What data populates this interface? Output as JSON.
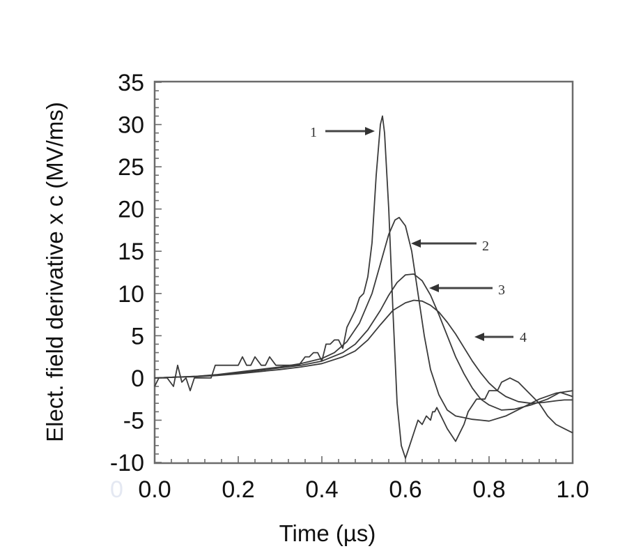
{
  "chart_data": {
    "type": "line",
    "title": "",
    "xlabel": "Time (µs)",
    "ylabel": "Elect. field derivative x c  (MV/ms)",
    "xlim": [
      0.0,
      1.0
    ],
    "ylim": [
      -10,
      35
    ],
    "x_ticks": [
      "0.0",
      "0.2",
      "0.4",
      "0.6",
      "0.8",
      "1.0"
    ],
    "x_tick_values": [
      0.0,
      0.2,
      0.4,
      0.6,
      0.8,
      1.0
    ],
    "y_ticks": [
      "35",
      "30",
      "25",
      "20",
      "15",
      "10",
      "5",
      "0",
      "-5",
      "-10"
    ],
    "y_tick_values": [
      35,
      30,
      25,
      20,
      15,
      10,
      5,
      0,
      -5,
      -10
    ],
    "grid": false,
    "legend": "none",
    "stray_glyph": "0",
    "series": [
      {
        "name": "1",
        "x": [
          0.0,
          0.01,
          0.02,
          0.03,
          0.045,
          0.055,
          0.065,
          0.075,
          0.085,
          0.095,
          0.11,
          0.12,
          0.135,
          0.145,
          0.155,
          0.17,
          0.185,
          0.2,
          0.21,
          0.22,
          0.23,
          0.24,
          0.255,
          0.265,
          0.275,
          0.29,
          0.3,
          0.315,
          0.33,
          0.345,
          0.36,
          0.37,
          0.38,
          0.39,
          0.4,
          0.41,
          0.42,
          0.43,
          0.44,
          0.45,
          0.46,
          0.47,
          0.48,
          0.49,
          0.5,
          0.51,
          0.52,
          0.53,
          0.54,
          0.545,
          0.55,
          0.56,
          0.57,
          0.58,
          0.59,
          0.6,
          0.61,
          0.62,
          0.63,
          0.64,
          0.65,
          0.66,
          0.665,
          0.67,
          0.675,
          0.68,
          0.69,
          0.7,
          0.72,
          0.74,
          0.75,
          0.77,
          0.79,
          0.8,
          0.82,
          0.83,
          0.85,
          0.87,
          0.88,
          0.9,
          0.92,
          0.94,
          0.96,
          0.98,
          1.0
        ],
        "y": [
          -1.0,
          0.0,
          0.0,
          0.0,
          -1.0,
          1.5,
          -0.5,
          0.0,
          -1.5,
          0.0,
          0.0,
          0.0,
          0.0,
          1.5,
          1.5,
          1.5,
          1.5,
          1.5,
          2.5,
          1.5,
          1.5,
          2.5,
          1.5,
          1.5,
          2.5,
          1.5,
          1.5,
          1.5,
          1.5,
          1.5,
          2.5,
          2.5,
          3.0,
          3.0,
          2.0,
          4.0,
          4.0,
          4.5,
          4.5,
          3.5,
          6.0,
          7.0,
          8.0,
          9.5,
          10.0,
          12.0,
          16.0,
          24.0,
          30.0,
          31.0,
          29.0,
          20.0,
          8.0,
          -3.0,
          -8.0,
          -9.5,
          -8.0,
          -6.5,
          -5.0,
          -5.5,
          -4.5,
          -5.0,
          -4.0,
          -4.0,
          -3.5,
          -4.0,
          -5.0,
          -6.0,
          -7.5,
          -5.5,
          -4.0,
          -2.5,
          -2.5,
          -1.5,
          -1.5,
          -0.5,
          0.0,
          -0.5,
          -1.0,
          -2.0,
          -3.0,
          -4.5,
          -5.5,
          -6.0,
          -6.5
        ],
        "label_text": "1"
      },
      {
        "name": "2",
        "x": [
          0.0,
          0.05,
          0.1,
          0.15,
          0.2,
          0.25,
          0.3,
          0.35,
          0.4,
          0.43,
          0.46,
          0.49,
          0.52,
          0.54,
          0.56,
          0.575,
          0.585,
          0.6,
          0.615,
          0.63,
          0.645,
          0.66,
          0.68,
          0.7,
          0.72,
          0.74,
          0.76,
          0.78,
          0.8,
          0.84,
          0.88,
          0.92,
          0.96,
          1.0
        ],
        "y": [
          0.0,
          0.1,
          0.2,
          0.4,
          0.7,
          1.0,
          1.3,
          1.7,
          2.3,
          3.0,
          4.3,
          6.5,
          10.0,
          13.5,
          17.0,
          18.7,
          19.0,
          18.0,
          15.0,
          10.0,
          5.0,
          1.0,
          -2.0,
          -3.8,
          -4.5,
          -4.7,
          -4.9,
          -5.0,
          -5.1,
          -4.5,
          -3.5,
          -2.5,
          -1.8,
          -1.5
        ],
        "label_text": "2"
      },
      {
        "name": "3",
        "x": [
          0.0,
          0.05,
          0.1,
          0.15,
          0.2,
          0.25,
          0.3,
          0.35,
          0.4,
          0.45,
          0.48,
          0.51,
          0.54,
          0.56,
          0.58,
          0.6,
          0.62,
          0.64,
          0.66,
          0.68,
          0.7,
          0.72,
          0.74,
          0.76,
          0.78,
          0.8,
          0.83,
          0.86,
          0.9,
          0.94,
          0.97,
          1.0
        ],
        "y": [
          0.0,
          0.1,
          0.2,
          0.35,
          0.6,
          0.9,
          1.2,
          1.5,
          2.0,
          3.0,
          4.0,
          5.7,
          8.0,
          9.8,
          11.3,
          12.2,
          12.3,
          11.5,
          9.8,
          7.5,
          5.0,
          2.5,
          0.5,
          -1.2,
          -2.5,
          -3.2,
          -3.8,
          -3.7,
          -3.2,
          -2.5,
          -1.7,
          -2.2
        ],
        "label_text": "3"
      },
      {
        "name": "4",
        "x": [
          0.0,
          0.05,
          0.1,
          0.15,
          0.2,
          0.25,
          0.3,
          0.35,
          0.4,
          0.45,
          0.48,
          0.51,
          0.54,
          0.57,
          0.6,
          0.62,
          0.64,
          0.66,
          0.68,
          0.7,
          0.72,
          0.74,
          0.76,
          0.78,
          0.8,
          0.82,
          0.84,
          0.87,
          0.9,
          0.93,
          0.96,
          0.98,
          1.0
        ],
        "y": [
          0.0,
          0.1,
          0.15,
          0.3,
          0.5,
          0.75,
          1.0,
          1.3,
          1.7,
          2.5,
          3.2,
          4.5,
          6.3,
          8.0,
          8.9,
          9.2,
          9.1,
          8.6,
          7.8,
          6.6,
          5.2,
          3.6,
          2.0,
          0.6,
          -0.6,
          -1.5,
          -2.2,
          -2.8,
          -3.0,
          -2.9,
          -2.7,
          -2.6,
          -2.6
        ],
        "label_text": "4"
      }
    ],
    "annotations": [
      {
        "text": "1",
        "target_series": "1",
        "arrow": "points-right"
      },
      {
        "text": "2",
        "target_series": "2",
        "arrow": "points-left"
      },
      {
        "text": "3",
        "target_series": "3",
        "arrow": "points-left"
      },
      {
        "text": "4",
        "target_series": "4",
        "arrow": "points-left"
      }
    ],
    "colors": {
      "curves": "#3a3a3a",
      "frame": "#6b6b6b",
      "text": "#111111"
    }
  }
}
